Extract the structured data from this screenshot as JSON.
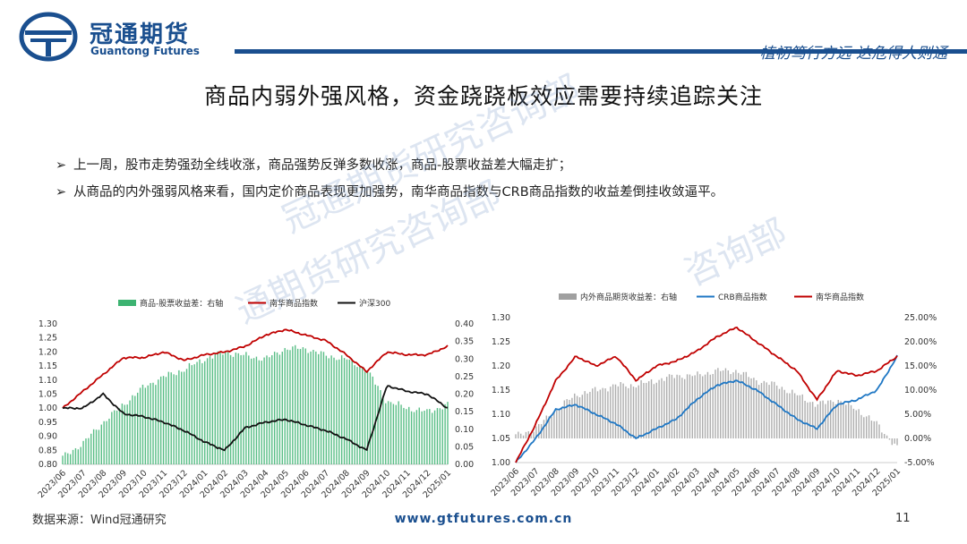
{
  "header": {
    "brand_cn": "冠通期货",
    "brand_en": "Guantong Futures",
    "slogan": "植初笃行方远  达危得人则通",
    "accent_color": "#1a4f8f",
    "logo_icon": "guantong-logo-icon"
  },
  "slide": {
    "title": "商品内弱外强风格，资金跷跷板效应需要持续追踪关注",
    "bullets": [
      "上一周，股市走势强劲全线收涨，商品强势反弹多数收涨，商品-股票收益差大幅走扩；",
      "从商品的内外强弱风格来看，国内定价商品表现更加强势，南华商品指数与CRB商品指数的收益差倒挂收敛逼平。"
    ],
    "watermark_1": "冠通期货研究咨询部",
    "watermark_2": "通期货研究咨询部",
    "watermark_3": "咨询部"
  },
  "footer": {
    "source": "数据来源：Wind冠通研究",
    "url": "www.gtfutures.com.cn",
    "page": "11"
  },
  "chart_data": [
    {
      "type": "line",
      "x_ticks": [
        "2023/06",
        "2023/07",
        "2023/08",
        "2023/09",
        "2023/10",
        "2023/11",
        "2023/12",
        "2024/01",
        "2024/02",
        "2024/03",
        "2024/04",
        "2024/05",
        "2024/06",
        "2024/07",
        "2024/08",
        "2024/09",
        "2024/10",
        "2024/11",
        "2024/12",
        "2025/01"
      ],
      "yleft_ticks": [
        "0.80",
        "0.85",
        "0.90",
        "0.95",
        "1.00",
        "1.05",
        "1.10",
        "1.15",
        "1.20",
        "1.25",
        "1.30"
      ],
      "yright_ticks": [
        "0.00",
        "0.05",
        "0.10",
        "0.15",
        "0.20",
        "0.25",
        "0.30",
        "0.35",
        "0.40"
      ],
      "ylim_left": [
        0.8,
        1.3
      ],
      "ylim_right": [
        0.0,
        0.4
      ],
      "legend_position": "top",
      "series": [
        {
          "name": "商品-股票收益差：右轴",
          "axis": "right",
          "kind": "bar",
          "color": "#3cb371",
          "x": [
            "2023/06",
            "2023/07",
            "2023/08",
            "2023/09",
            "2023/10",
            "2023/11",
            "2023/12",
            "2024/01",
            "2024/02",
            "2024/03",
            "2024/04",
            "2024/05",
            "2024/06",
            "2024/07",
            "2024/08",
            "2024/09",
            "2024/10",
            "2024/11",
            "2024/12",
            "2025/01"
          ],
          "values": [
            0.02,
            0.06,
            0.12,
            0.17,
            0.22,
            0.25,
            0.27,
            0.3,
            0.32,
            0.31,
            0.3,
            0.33,
            0.33,
            0.31,
            0.3,
            0.27,
            0.18,
            0.16,
            0.15,
            0.17
          ]
        },
        {
          "name": "南华商品指数",
          "axis": "left",
          "kind": "line",
          "color": "#c00000",
          "x": [
            "2023/06",
            "2023/07",
            "2023/08",
            "2023/09",
            "2023/10",
            "2023/11",
            "2023/12",
            "2024/01",
            "2024/02",
            "2024/03",
            "2024/04",
            "2024/05",
            "2024/06",
            "2024/07",
            "2024/08",
            "2024/09",
            "2024/10",
            "2024/11",
            "2024/12",
            "2025/01"
          ],
          "values": [
            1.0,
            1.06,
            1.12,
            1.18,
            1.18,
            1.2,
            1.17,
            1.19,
            1.2,
            1.22,
            1.26,
            1.28,
            1.26,
            1.24,
            1.19,
            1.13,
            1.2,
            1.19,
            1.19,
            1.22
          ]
        },
        {
          "name": "沪深300",
          "axis": "left",
          "kind": "line",
          "color": "#111111",
          "x": [
            "2023/06",
            "2023/07",
            "2023/08",
            "2023/09",
            "2023/10",
            "2023/11",
            "2023/12",
            "2024/01",
            "2024/02",
            "2024/03",
            "2024/04",
            "2024/05",
            "2024/06",
            "2024/07",
            "2024/08",
            "2024/09",
            "2024/10",
            "2024/11",
            "2024/12",
            "2025/01"
          ],
          "values": [
            1.0,
            1.0,
            1.05,
            0.98,
            0.97,
            0.95,
            0.92,
            0.88,
            0.85,
            0.93,
            0.95,
            0.96,
            0.94,
            0.92,
            0.89,
            0.85,
            1.08,
            1.06,
            1.05,
            1.0
          ]
        }
      ]
    },
    {
      "type": "line",
      "x_ticks": [
        "2023/06",
        "2023/07",
        "2023/08",
        "2023/09",
        "2023/10",
        "2023/11",
        "2023/12",
        "2024/01",
        "2024/02",
        "2024/03",
        "2024/04",
        "2024/05",
        "2024/06",
        "2024/07",
        "2024/08",
        "2024/09",
        "2024/10",
        "2024/11",
        "2024/12",
        "2025/01"
      ],
      "yleft_ticks": [
        "1.00",
        "1.05",
        "1.10",
        "1.15",
        "1.20",
        "1.25",
        "1.30"
      ],
      "yright_ticks": [
        "-5.00%",
        "0.00%",
        "5.00%",
        "10.00%",
        "15.00%",
        "20.00%",
        "25.00%"
      ],
      "ylim_left": [
        1.0,
        1.3
      ],
      "ylim_right": [
        -5,
        25
      ],
      "legend_position": "top",
      "series": [
        {
          "name": "内外商品期货收益差：右轴",
          "axis": "right",
          "kind": "bar",
          "color": "#a0a0a0",
          "x": [
            "2023/06",
            "2023/07",
            "2023/08",
            "2023/09",
            "2023/10",
            "2023/11",
            "2023/12",
            "2024/01",
            "2024/02",
            "2024/03",
            "2024/04",
            "2024/05",
            "2024/06",
            "2024/07",
            "2024/08",
            "2024/09",
            "2024/10",
            "2024/11",
            "2024/12",
            "2025/01"
          ],
          "values": [
            0.5,
            2,
            6,
            9,
            10,
            11,
            11,
            12,
            13,
            13,
            14,
            14,
            12,
            11,
            9,
            7,
            8,
            6,
            3,
            -2
          ]
        },
        {
          "name": "CRB商品指数",
          "axis": "left",
          "kind": "line",
          "color": "#1f77c4",
          "x": [
            "2023/06",
            "2023/07",
            "2023/08",
            "2023/09",
            "2023/10",
            "2023/11",
            "2023/12",
            "2024/01",
            "2024/02",
            "2024/03",
            "2024/04",
            "2024/05",
            "2024/06",
            "2024/07",
            "2024/08",
            "2024/09",
            "2024/10",
            "2024/11",
            "2024/12",
            "2025/01"
          ],
          "values": [
            1.0,
            1.05,
            1.11,
            1.12,
            1.1,
            1.08,
            1.05,
            1.07,
            1.09,
            1.13,
            1.16,
            1.17,
            1.15,
            1.12,
            1.09,
            1.07,
            1.12,
            1.13,
            1.15,
            1.22
          ]
        },
        {
          "name": "南华商品指数",
          "axis": "left",
          "kind": "line",
          "color": "#c00000",
          "x": [
            "2023/06",
            "2023/07",
            "2023/08",
            "2023/09",
            "2023/10",
            "2023/11",
            "2023/12",
            "2024/01",
            "2024/02",
            "2024/03",
            "2024/04",
            "2024/05",
            "2024/06",
            "2024/07",
            "2024/08",
            "2024/09",
            "2024/10",
            "2024/11",
            "2024/12",
            "2025/01"
          ],
          "values": [
            1.0,
            1.08,
            1.17,
            1.22,
            1.2,
            1.22,
            1.17,
            1.2,
            1.21,
            1.23,
            1.26,
            1.28,
            1.25,
            1.22,
            1.19,
            1.13,
            1.19,
            1.18,
            1.19,
            1.22
          ]
        }
      ]
    }
  ]
}
